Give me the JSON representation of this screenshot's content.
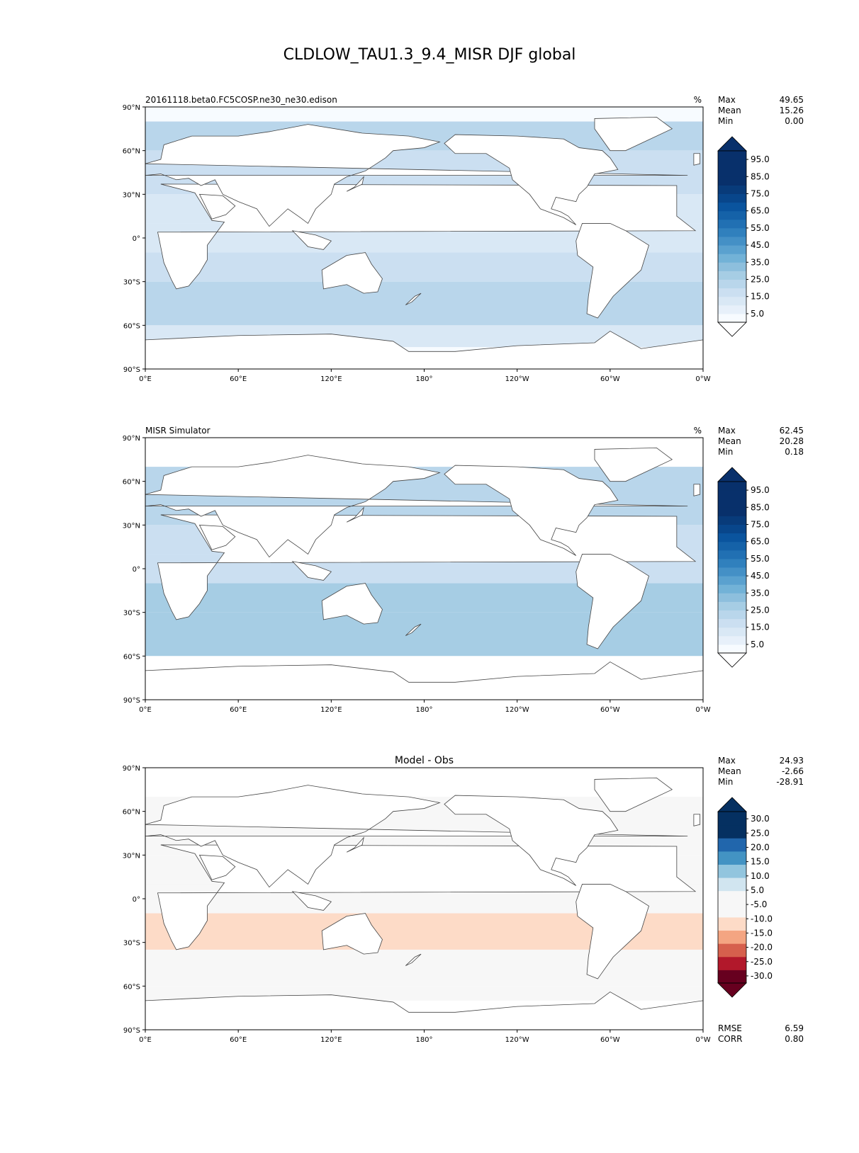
{
  "figure_title": "CLDLOW_TAU1.3_9.4_MISR DJF global",
  "chart_data": [
    {
      "type": "heatmap",
      "subtitle_left": "20161118.beta0.FC5COSP.ne30_ne30.edison",
      "subtitle_center": "",
      "units": "%",
      "stats": [
        {
          "label": "Max",
          "value": "49.65"
        },
        {
          "label": "Mean",
          "value": "15.26"
        },
        {
          "label": "Min",
          "value": "0.00"
        }
      ],
      "colorbar": {
        "boundaries": [
          0,
          5,
          10,
          15,
          20,
          25,
          30,
          35,
          40,
          45,
          50,
          55,
          60,
          65,
          70,
          75,
          80,
          85,
          90,
          95,
          100
        ],
        "colors": [
          "#f7fbff",
          "#e7f0fa",
          "#d9e8f5",
          "#cbdff1",
          "#b9d6eb",
          "#a6cde4",
          "#8dbfdd",
          "#72b2d7",
          "#5aa1cf",
          "#4490c6",
          "#3080bd",
          "#2170b3",
          "#1562a8",
          "#0a549e",
          "#08468b",
          "#083b7a",
          "#08306b",
          "#08306b",
          "#08306b",
          "#08306b"
        ],
        "extend_high_color": "#08306b",
        "extend_low_color": "#ffffff",
        "tick_labels": [
          "5.0",
          "15.0",
          "25.0",
          "35.0",
          "45.0",
          "55.0",
          "65.0",
          "75.0",
          "85.0",
          "95.0"
        ]
      },
      "longitudes": [
        "0°E",
        "60°E",
        "120°E",
        "180°",
        "120°W",
        "60°W",
        "0°W"
      ],
      "latitudes": [
        "90°N",
        "60°N",
        "30°N",
        "0°",
        "30°S",
        "60°S",
        "90°S"
      ],
      "field_summary": [
        {
          "band": "90N-80N",
          "value": 0
        },
        {
          "band": "80N-60N",
          "value": 20
        },
        {
          "band": "60N-30N",
          "value": 18
        },
        {
          "band": "30N-10N",
          "value": 14
        },
        {
          "band": "10N-10S",
          "value": 12
        },
        {
          "band": "10S-30S",
          "value": 18
        },
        {
          "band": "30S-60S",
          "value": 22
        },
        {
          "band": "60S-75S",
          "value": 10
        },
        {
          "band": "75S-90S",
          "value": 3
        }
      ],
      "rmse": null,
      "corr": null
    },
    {
      "type": "heatmap",
      "subtitle_left": "MISR Simulator",
      "subtitle_center": "",
      "units": "%",
      "stats": [
        {
          "label": "Max",
          "value": "62.45"
        },
        {
          "label": "Mean",
          "value": "20.28"
        },
        {
          "label": "Min",
          "value": "0.18"
        }
      ],
      "colorbar": {
        "boundaries": [
          0,
          5,
          10,
          15,
          20,
          25,
          30,
          35,
          40,
          45,
          50,
          55,
          60,
          65,
          70,
          75,
          80,
          85,
          90,
          95,
          100
        ],
        "colors": [
          "#f7fbff",
          "#e7f0fa",
          "#d9e8f5",
          "#cbdff1",
          "#b9d6eb",
          "#a6cde4",
          "#8dbfdd",
          "#72b2d7",
          "#5aa1cf",
          "#4490c6",
          "#3080bd",
          "#2170b3",
          "#1562a8",
          "#0a549e",
          "#08468b",
          "#083b7a",
          "#08306b",
          "#08306b",
          "#08306b",
          "#08306b"
        ],
        "extend_high_color": "#08306b",
        "extend_low_color": "#ffffff",
        "tick_labels": [
          "5.0",
          "15.0",
          "25.0",
          "35.0",
          "45.0",
          "55.0",
          "65.0",
          "75.0",
          "85.0",
          "95.0"
        ]
      },
      "longitudes": [
        "0°E",
        "60°E",
        "120°E",
        "180°",
        "120°W",
        "60°W",
        "0°W"
      ],
      "latitudes": [
        "90°N",
        "60°N",
        "30°N",
        "0°",
        "30°S",
        "60°S",
        "90°S"
      ],
      "field_summary": [
        {
          "band": "90N-70N",
          "value": null
        },
        {
          "band": "70N-30N",
          "value": 20
        },
        {
          "band": "30N-10N",
          "value": 17
        },
        {
          "band": "10N-10S",
          "value": 15
        },
        {
          "band": "10S-30S",
          "value": 25
        },
        {
          "band": "30S-60S",
          "value": 27
        },
        {
          "band": "60S-90S",
          "value": null
        }
      ],
      "rmse": null,
      "corr": null
    },
    {
      "type": "heatmap",
      "subtitle_left": "",
      "subtitle_center": "Model - Obs",
      "units": "",
      "stats": [
        {
          "label": "Max",
          "value": "24.93"
        },
        {
          "label": "Mean",
          "value": "-2.66"
        },
        {
          "label": "Min",
          "value": "-28.91"
        }
      ],
      "colorbar": {
        "boundaries": [
          -35,
          -30,
          -25,
          -20,
          -15,
          -10,
          -5,
          5,
          10,
          15,
          20,
          25,
          30,
          35
        ],
        "colors": [
          "#67001f",
          "#b2182b",
          "#d6604d",
          "#f4a582",
          "#fddbc7",
          "#f7f7f7",
          "#f7f7f7",
          "#d1e5f0",
          "#92c5de",
          "#4393c3",
          "#2166ac",
          "#053061",
          "#053061"
        ],
        "extend_high_color": "#053061",
        "extend_low_color": "#67001f",
        "tick_labels": [
          "-30.0",
          "-25.0",
          "-20.0",
          "-15.0",
          "-10.0",
          "-5.0",
          "5.0",
          "10.0",
          "15.0",
          "20.0",
          "25.0",
          "30.0"
        ]
      },
      "longitudes": [
        "0°E",
        "60°E",
        "120°E",
        "180°",
        "120°W",
        "60°W",
        "0°W"
      ],
      "latitudes": [
        "90°N",
        "60°N",
        "30°N",
        "0°",
        "30°S",
        "60°S",
        "90°S"
      ],
      "field_summary": [
        {
          "band": "70N-30N",
          "value": -2
        },
        {
          "band": "30N-10N",
          "value": -3
        },
        {
          "band": "10N-10S",
          "value": -4
        },
        {
          "band": "10S-35S",
          "value": -12
        },
        {
          "band": "35S-60S",
          "value": 0
        },
        {
          "band": "60S-70S",
          "value": -5
        }
      ],
      "rmse": {
        "label": "RMSE",
        "value": "6.59"
      },
      "corr": {
        "label": "CORR",
        "value": "0.80"
      }
    }
  ]
}
